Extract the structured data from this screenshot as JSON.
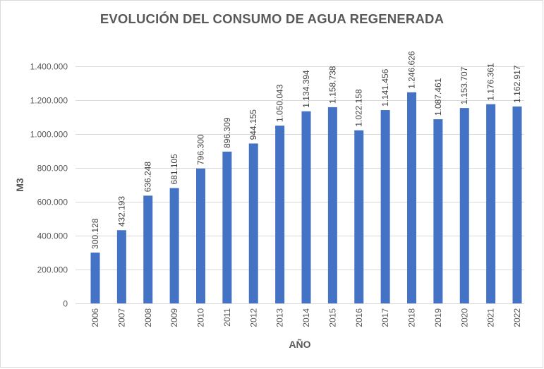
{
  "chart_data": {
    "type": "bar",
    "title": "EVOLUCIÓN DEL CONSUMO DE AGUA REGENERADA",
    "xlabel": "AÑO",
    "ylabel": "M3",
    "ylim": [
      0,
      1400000
    ],
    "yticks": [
      0,
      200000,
      400000,
      600000,
      800000,
      1000000,
      1200000,
      1400000
    ],
    "ytick_labels": [
      "0",
      "200.000",
      "400.000",
      "600.000",
      "800.000",
      "1.000.000",
      "1.200.000",
      "1.400.000"
    ],
    "grid": true,
    "legend": "none",
    "categories": [
      "2006",
      "2007",
      "2008",
      "2009",
      "2010",
      "2011",
      "2012",
      "2013",
      "2014",
      "2015",
      "2016",
      "2017",
      "2018",
      "2019",
      "2020",
      "2021",
      "2022"
    ],
    "values": [
      300128,
      432193,
      636248,
      681105,
      796300,
      896309,
      944155,
      1050043,
      1134394,
      1158738,
      1022158,
      1141456,
      1246626,
      1087461,
      1153707,
      1176361,
      1162917
    ],
    "value_labels": [
      "300.128",
      "432.193",
      "636.248",
      "681.105",
      "796.300",
      "896.309",
      "944.155",
      "1.050.043",
      "1.134.394",
      "1.158.738",
      "1.022.158",
      "1.141.456",
      "1.246.626",
      "1.087.461",
      "1.153.707",
      "1.176.361",
      "1.162.917"
    ],
    "colors": {
      "bar": "#4472C4",
      "grid": "#d9d9d9",
      "text": "#595959"
    }
  }
}
